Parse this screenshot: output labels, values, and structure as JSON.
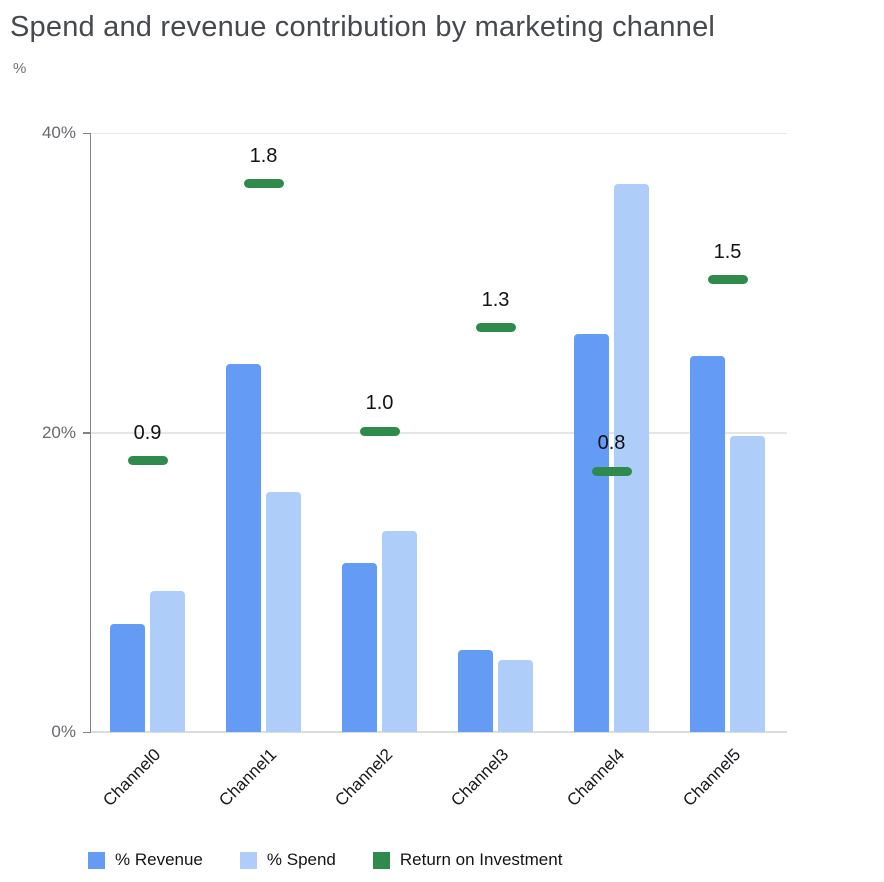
{
  "header": {
    "title": "Spend and revenue contribution by marketing channel",
    "axis_unit_label": "%"
  },
  "y_axis": {
    "tick_labels": [
      "40%",
      "20%",
      "0%"
    ],
    "max_pct": 40
  },
  "x_axis": {
    "labels": [
      "Channel0",
      "Channel1",
      "Channel2",
      "Channel3",
      "Channel4",
      "Channel5"
    ]
  },
  "legend": {
    "items": [
      {
        "label": "% Revenue",
        "color": "#649bf5"
      },
      {
        "label": "% Spend",
        "color": "#aecdf9"
      },
      {
        "label": "Return on Investment",
        "color": "#2e8b4c"
      }
    ]
  },
  "colors": {
    "revenue_bar": "#649bf5",
    "spend_bar": "#aecdf9",
    "roi_marker": "#2e8b4c",
    "gridline": "#e6e6e6",
    "axis_line": "#7d8286",
    "title_text": "#46494e",
    "y_label_text": "#66696e"
  },
  "chart_data": {
    "type": "bar",
    "title": "Spend and revenue contribution by marketing channel",
    "xlabel": "",
    "ylabel": "%",
    "ylim": [
      0,
      40
    ],
    "grid": "horizontal",
    "legend_position": "bottom",
    "categories": [
      "Channel0",
      "Channel1",
      "Channel2",
      "Channel3",
      "Channel4",
      "Channel5"
    ],
    "series": [
      {
        "name": "% Revenue",
        "render": "bar",
        "axis": "primary",
        "values": [
          7.2,
          24.6,
          11.3,
          5.5,
          26.6,
          25.1
        ]
      },
      {
        "name": "% Spend",
        "render": "bar",
        "axis": "primary",
        "values": [
          9.4,
          16.0,
          13.4,
          4.8,
          36.6,
          19.8
        ]
      },
      {
        "name": "Return on Investment",
        "render": "dash-marker-with-label",
        "axis": "secondary",
        "secondary_axis_range": [
          0,
          2
        ],
        "values": [
          0.9,
          1.8,
          1.0,
          1.3,
          0.8,
          1.5
        ],
        "data_labels": [
          "0.9",
          "1.8",
          "1.0",
          "1.3",
          "0.8",
          "1.5"
        ],
        "marker_pos_primary_pct": [
          18.1,
          36.6,
          20.1,
          27.0,
          17.4,
          30.2
        ]
      }
    ]
  }
}
